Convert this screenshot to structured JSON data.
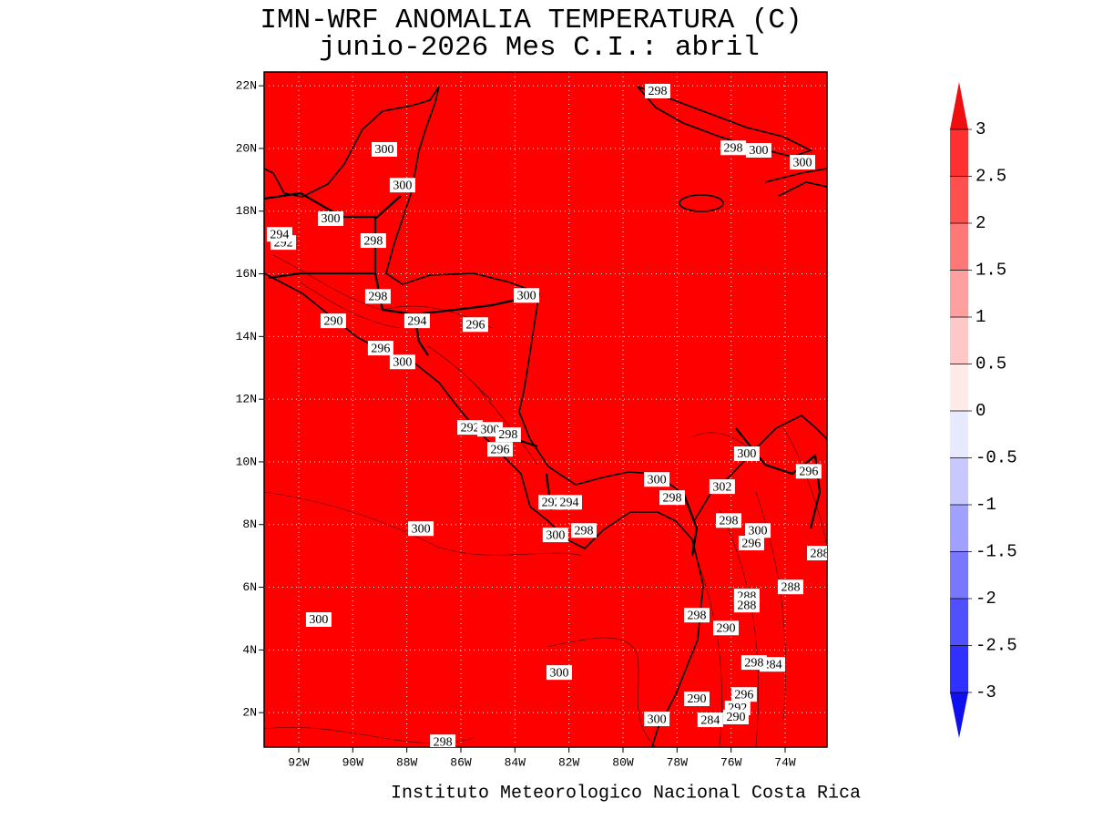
{
  "map": {
    "title": "IMN-WRF  ANOMALIA TEMPERATURA (C)",
    "subtitle": "junio-2026 Mes C.I.: abril",
    "footer": "Instituto Meteorologico Nacional Costa Rica",
    "fill_color": "#ff0000",
    "grid": true,
    "xlim": [
      -93.28,
      -72.45
    ],
    "ylim": [
      0.9,
      22.44
    ],
    "xticks": [
      {
        "value": -92,
        "label": "92W"
      },
      {
        "value": -90,
        "label": "90W"
      },
      {
        "value": -88,
        "label": "88W"
      },
      {
        "value": -86,
        "label": "86W"
      },
      {
        "value": -84,
        "label": "84W"
      },
      {
        "value": -82,
        "label": "82W"
      },
      {
        "value": -80,
        "label": "80W"
      },
      {
        "value": -78,
        "label": "78W"
      },
      {
        "value": -76,
        "label": "76W"
      },
      {
        "value": -74,
        "label": "74W"
      }
    ],
    "yticks": [
      {
        "value": 2,
        "label": "2N"
      },
      {
        "value": 4,
        "label": "4N"
      },
      {
        "value": 6,
        "label": "6N"
      },
      {
        "value": 8,
        "label": "8N"
      },
      {
        "value": 10,
        "label": "10N"
      },
      {
        "value": 12,
        "label": "12N"
      },
      {
        "value": 14,
        "label": "14N"
      },
      {
        "value": 16,
        "label": "16N"
      },
      {
        "value": 18,
        "label": "18N"
      },
      {
        "value": 20,
        "label": "20N"
      },
      {
        "value": 22,
        "label": "22N"
      }
    ],
    "contour_labels": [
      {
        "text": "298",
        "lon": -78.72,
        "lat": 21.83
      },
      {
        "text": "300",
        "lon": -88.83,
        "lat": 19.97
      },
      {
        "text": "298",
        "lon": -75.92,
        "lat": 20.02
      },
      {
        "text": "300",
        "lon": -74.98,
        "lat": 19.94
      },
      {
        "text": "300",
        "lon": -73.36,
        "lat": 19.56
      },
      {
        "text": "300",
        "lon": -88.16,
        "lat": 18.83
      },
      {
        "text": "300",
        "lon": -90.82,
        "lat": 17.76
      },
      {
        "text": "292",
        "lon": -92.57,
        "lat": 17.0
      },
      {
        "text": "294",
        "lon": -92.71,
        "lat": 17.26
      },
      {
        "text": "298",
        "lon": -89.24,
        "lat": 17.06
      },
      {
        "text": "298",
        "lon": -89.07,
        "lat": 15.28
      },
      {
        "text": "300",
        "lon": -83.57,
        "lat": 15.31
      },
      {
        "text": "290",
        "lon": -90.72,
        "lat": 14.5
      },
      {
        "text": "294",
        "lon": -87.62,
        "lat": 14.5
      },
      {
        "text": "296",
        "lon": -85.46,
        "lat": 14.38
      },
      {
        "text": "296",
        "lon": -88.97,
        "lat": 13.63
      },
      {
        "text": "300",
        "lon": -88.16,
        "lat": 13.19
      },
      {
        "text": "292",
        "lon": -85.66,
        "lat": 11.1
      },
      {
        "text": "300",
        "lon": -84.92,
        "lat": 11.04
      },
      {
        "text": "298",
        "lon": -84.25,
        "lat": 10.87
      },
      {
        "text": "296",
        "lon": -84.55,
        "lat": 10.4
      },
      {
        "text": "300",
        "lon": -75.42,
        "lat": 10.26
      },
      {
        "text": "296",
        "lon": -73.13,
        "lat": 9.7
      },
      {
        "text": "300",
        "lon": -78.75,
        "lat": 9.44
      },
      {
        "text": "302",
        "lon": -76.33,
        "lat": 9.21
      },
      {
        "text": "298",
        "lon": -78.18,
        "lat": 8.86
      },
      {
        "text": "292",
        "lon": -82.66,
        "lat": 8.71
      },
      {
        "text": "294",
        "lon": -81.99,
        "lat": 8.71
      },
      {
        "text": "298",
        "lon": -76.09,
        "lat": 8.13
      },
      {
        "text": "300",
        "lon": -87.48,
        "lat": 7.87
      },
      {
        "text": "300",
        "lon": -75.01,
        "lat": 7.81
      },
      {
        "text": "300",
        "lon": -82.5,
        "lat": 7.67
      },
      {
        "text": "298",
        "lon": -81.45,
        "lat": 7.81
      },
      {
        "text": "296",
        "lon": -75.25,
        "lat": 7.41
      },
      {
        "text": "288",
        "lon": -72.72,
        "lat": 7.09
      },
      {
        "text": "288",
        "lon": -73.8,
        "lat": 6.01
      },
      {
        "text": "288",
        "lon": -75.42,
        "lat": 5.72
      },
      {
        "text": "288",
        "lon": -75.42,
        "lat": 5.43
      },
      {
        "text": "298",
        "lon": -77.27,
        "lat": 5.11
      },
      {
        "text": "300",
        "lon": -91.26,
        "lat": 4.97
      },
      {
        "text": "290",
        "lon": -76.19,
        "lat": 4.7
      },
      {
        "text": "284",
        "lon": -74.47,
        "lat": 3.54
      },
      {
        "text": "298",
        "lon": -75.15,
        "lat": 3.6
      },
      {
        "text": "300",
        "lon": -82.36,
        "lat": 3.28
      },
      {
        "text": "296",
        "lon": -75.52,
        "lat": 2.58
      },
      {
        "text": "290",
        "lon": -77.27,
        "lat": 2.44
      },
      {
        "text": "292",
        "lon": -75.76,
        "lat": 2.15
      },
      {
        "text": "290",
        "lon": -75.82,
        "lat": 1.86
      },
      {
        "text": "284",
        "lon": -76.77,
        "lat": 1.77
      },
      {
        "text": "300",
        "lon": -78.75,
        "lat": 1.8
      },
      {
        "text": "298",
        "lon": -86.67,
        "lat": 1.07
      }
    ],
    "colorbar": {
      "levels": [
        3,
        2.5,
        2,
        1.5,
        1,
        0.5,
        0,
        -0.5,
        -1,
        -1.5,
        -2,
        -2.5,
        -3
      ],
      "colors": [
        "#ee1010",
        "#ff3030",
        "#ff5050",
        "#ff7878",
        "#ffa0a0",
        "#ffc8c8",
        "#ffeaea",
        "#e8e8ff",
        "#c8c8ff",
        "#a0a0ff",
        "#7878ff",
        "#5050ff",
        "#3030ff",
        "#1010ee"
      ]
    }
  }
}
